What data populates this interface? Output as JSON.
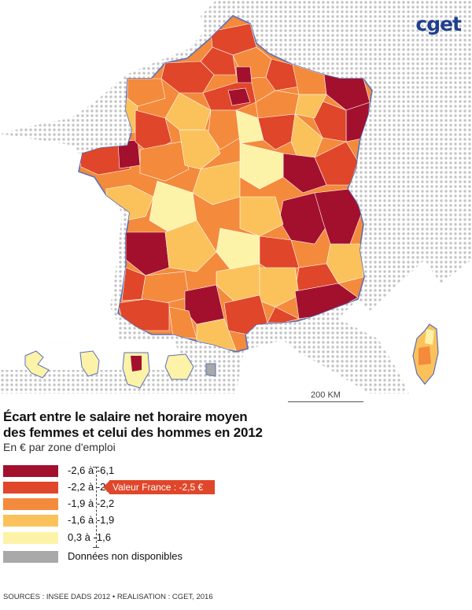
{
  "logo": {
    "text": "cget"
  },
  "scale": {
    "label": "200 KM"
  },
  "title": {
    "line1": "Écart entre le salaire net horaire moyen",
    "line2": "des femmes et celui des hommes en 2012"
  },
  "subtitle": "En € par zone d'emploi",
  "legend": {
    "items": [
      {
        "label": "-2,6 à -6,1",
        "color": "#a3102d"
      },
      {
        "label": "-2,2 à -2,6",
        "color": "#e0462a"
      },
      {
        "label": "-1,9 à -2,2",
        "color": "#f48a3c"
      },
      {
        "label": "-1,6 à -1,9",
        "color": "#fbc25c"
      },
      {
        "label": "0,3 à -1,6",
        "color": "#fdf3a8"
      },
      {
        "label": "Données non disponibles",
        "color": "#a9a9a9"
      }
    ]
  },
  "callout": {
    "label": "Valeur France : -2,5 €"
  },
  "footer": "SOURCES : INSEE DADS 2012 • REALISATION : CGET, 2016",
  "map_colors": {
    "dark_red": "#a3102d",
    "red": "#e0462a",
    "orange": "#f48a3c",
    "light_orange": "#fbc25c",
    "pale_yellow": "#fdf3a8",
    "no_data": "#a9a9a9",
    "border": "#5a6fb8"
  }
}
